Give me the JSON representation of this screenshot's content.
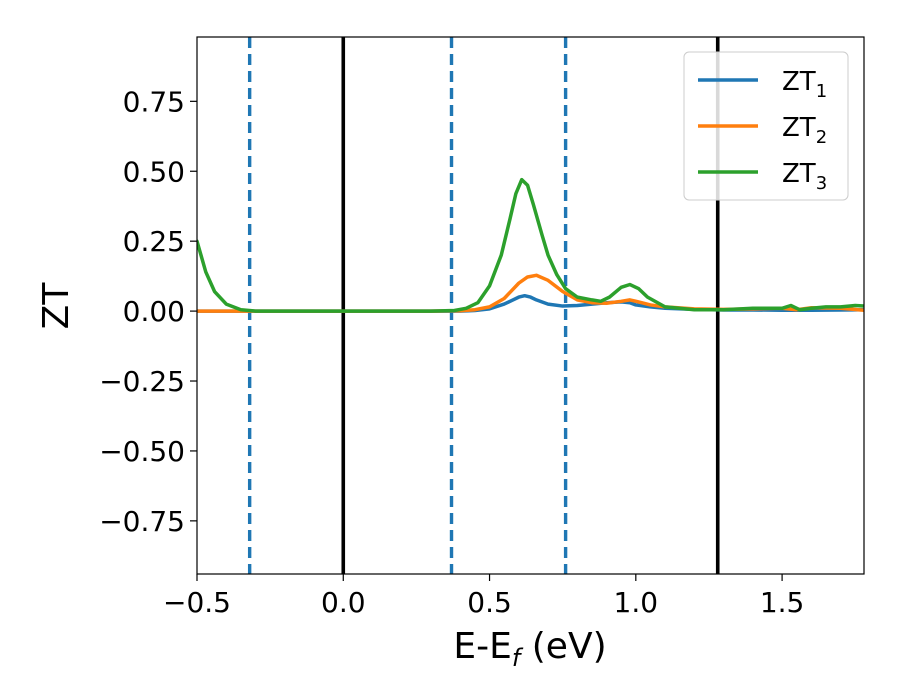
{
  "chart_data": {
    "type": "line",
    "title": "",
    "xlabel": "E-E",
    "xlabel_subscript": "f",
    "xlabel_suffix": " (eV)",
    "ylabel": "ZT",
    "xlim": [
      -0.5,
      1.78
    ],
    "ylim": [
      -0.94,
      0.98
    ],
    "x_ticks": [
      -0.5,
      0.0,
      0.5,
      1.0,
      1.5
    ],
    "x_tick_labels": [
      "−0.5",
      "0.0",
      "0.5",
      "1.0",
      "1.5"
    ],
    "y_ticks": [
      -0.75,
      -0.5,
      -0.25,
      0.0,
      0.25,
      0.5,
      0.75
    ],
    "y_tick_labels": [
      "−0.75",
      "−0.50",
      "−0.25",
      "0.00",
      "0.25",
      "0.50",
      "0.75"
    ],
    "grid": false,
    "legend": "top-right",
    "series": [
      {
        "name": "ZT",
        "name_subscript": "1",
        "color": "#1f77b4",
        "x": [
          -0.5,
          -0.4,
          -0.3,
          0.0,
          0.3,
          0.4,
          0.45,
          0.5,
          0.55,
          0.58,
          0.6,
          0.62,
          0.64,
          0.66,
          0.7,
          0.75,
          0.8,
          0.85,
          0.9,
          0.95,
          0.98,
          1.0,
          1.05,
          1.1,
          1.2,
          1.3,
          1.4,
          1.5,
          1.6,
          1.7,
          1.78
        ],
        "y": [
          0.0,
          0.0,
          0.0,
          0.0,
          0.0,
          0.0,
          0.002,
          0.008,
          0.025,
          0.04,
          0.05,
          0.055,
          0.05,
          0.04,
          0.025,
          0.018,
          0.02,
          0.025,
          0.03,
          0.033,
          0.03,
          0.022,
          0.015,
          0.01,
          0.006,
          0.004,
          0.004,
          0.003,
          0.003,
          0.004,
          0.005
        ]
      },
      {
        "name": "ZT",
        "name_subscript": "2",
        "color": "#ff7f0e",
        "x": [
          -0.5,
          -0.4,
          -0.3,
          0.0,
          0.3,
          0.4,
          0.45,
          0.5,
          0.55,
          0.6,
          0.63,
          0.66,
          0.7,
          0.75,
          0.8,
          0.85,
          0.9,
          0.95,
          0.98,
          1.02,
          1.05,
          1.1,
          1.2,
          1.3,
          1.4,
          1.5,
          1.55,
          1.6,
          1.7,
          1.78
        ],
        "y": [
          0.0,
          0.0,
          0.0,
          0.0,
          0.0,
          0.001,
          0.005,
          0.015,
          0.045,
          0.1,
          0.122,
          0.128,
          0.11,
          0.07,
          0.04,
          0.03,
          0.028,
          0.035,
          0.04,
          0.03,
          0.022,
          0.015,
          0.008,
          0.006,
          0.008,
          0.01,
          0.005,
          0.012,
          0.01,
          0.003
        ]
      },
      {
        "name": "ZT",
        "name_subscript": "3",
        "color": "#2ca02c",
        "x": [
          -0.5,
          -0.47,
          -0.44,
          -0.4,
          -0.35,
          -0.3,
          0.0,
          0.3,
          0.38,
          0.42,
          0.46,
          0.5,
          0.54,
          0.57,
          0.59,
          0.61,
          0.63,
          0.65,
          0.68,
          0.7,
          0.73,
          0.76,
          0.8,
          0.85,
          0.88,
          0.91,
          0.95,
          0.98,
          1.01,
          1.04,
          1.1,
          1.2,
          1.3,
          1.4,
          1.5,
          1.53,
          1.56,
          1.6,
          1.65,
          1.7,
          1.75,
          1.78
        ],
        "y": [
          0.25,
          0.14,
          0.07,
          0.025,
          0.005,
          0.0,
          0.0,
          0.0,
          0.002,
          0.01,
          0.03,
          0.09,
          0.2,
          0.33,
          0.42,
          0.47,
          0.45,
          0.38,
          0.27,
          0.2,
          0.13,
          0.08,
          0.05,
          0.04,
          0.035,
          0.05,
          0.085,
          0.095,
          0.08,
          0.05,
          0.015,
          0.005,
          0.005,
          0.01,
          0.01,
          0.02,
          0.005,
          0.01,
          0.015,
          0.015,
          0.02,
          0.018
        ]
      }
    ],
    "vertical_lines": [
      {
        "x": -0.32,
        "style": "dashed",
        "color": "#1f77b4"
      },
      {
        "x": 0.0,
        "style": "solid",
        "color": "#000000"
      },
      {
        "x": 0.37,
        "style": "dashed",
        "color": "#1f77b4"
      },
      {
        "x": 0.76,
        "style": "dashed",
        "color": "#1f77b4"
      },
      {
        "x": 1.28,
        "style": "solid",
        "color": "#000000"
      }
    ]
  }
}
